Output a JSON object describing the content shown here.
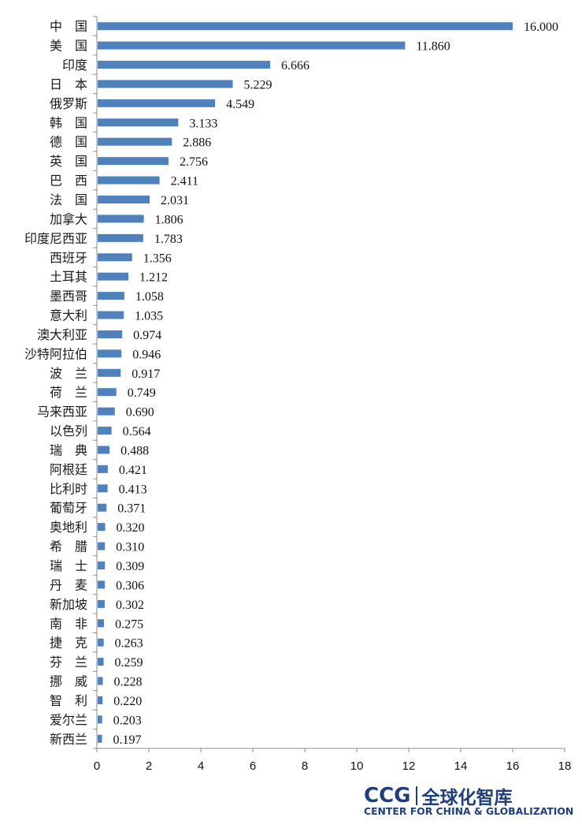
{
  "chart_data": {
    "type": "bar",
    "orientation": "horizontal",
    "categories": [
      "中　国",
      "美　国",
      "印度",
      "日　本",
      "俄罗斯",
      "韩　国",
      "德　国",
      "英　国",
      "巴　西",
      "法　国",
      "加拿大",
      "印度尼西亚",
      "西班牙",
      "土耳其",
      "墨西哥",
      "意大利",
      "澳大利亚",
      "沙特阿拉伯",
      "波　兰",
      "荷　兰",
      "马来西亚",
      "以色列",
      "瑞　典",
      "阿根廷",
      "比利时",
      "葡萄牙",
      "奥地利",
      "希　腊",
      "瑞　士",
      "丹　麦",
      "新加坡",
      "南　非",
      "捷　克",
      "芬　兰",
      "挪　威",
      "智　利",
      "爱尔兰",
      "新西兰"
    ],
    "values": [
      16.0,
      11.86,
      6.666,
      5.229,
      4.549,
      3.133,
      2.886,
      2.756,
      2.411,
      2.031,
      1.806,
      1.783,
      1.356,
      1.212,
      1.058,
      1.035,
      0.974,
      0.946,
      0.917,
      0.749,
      0.69,
      0.564,
      0.488,
      0.421,
      0.413,
      0.371,
      0.32,
      0.31,
      0.309,
      0.306,
      0.302,
      0.275,
      0.263,
      0.259,
      0.228,
      0.22,
      0.203,
      0.197
    ],
    "value_labels": [
      "16.000",
      "11.860",
      "6.666",
      "5.229",
      "4.549",
      "3.133",
      "2.886",
      "2.756",
      "2.411",
      "2.031",
      "1.806",
      "1.783",
      "1.356",
      "1.212",
      "1.058",
      "1.035",
      "0.974",
      "0.946",
      "0.917",
      "0.749",
      "0.690",
      "0.564",
      "0.488",
      "0.421",
      "0.413",
      "0.371",
      "0.320",
      "0.310",
      "0.309",
      "0.306",
      "0.302",
      "0.275",
      "0.263",
      "0.259",
      "0.228",
      "0.220",
      "0.203",
      "0.197"
    ],
    "xlim": [
      0,
      18
    ],
    "xticks": [
      "0",
      "2",
      "4",
      "6",
      "8",
      "10",
      "12",
      "14",
      "16",
      "18"
    ],
    "bar_color": "#4f81bd",
    "grid": false,
    "legend": false
  },
  "logo": {
    "ccg": "CCG",
    "cn": "全球化智库",
    "en": "CENTER FOR CHINA & GLOBALIZATION",
    "color": "#1e3f7a"
  }
}
